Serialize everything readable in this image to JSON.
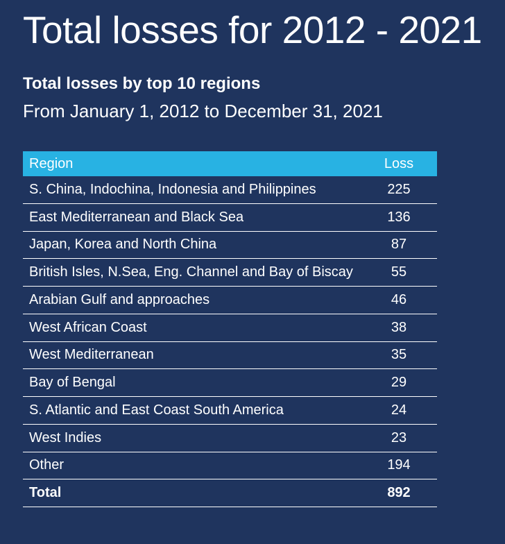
{
  "page": {
    "title": "Total losses for 2012 - 2021",
    "subtitle": "Total losses by top 10 regions",
    "date_range": "From January 1, 2012 to December 31, 2021"
  },
  "colors": {
    "background": "#1F345E",
    "table_header_background": "#28B2E3",
    "text": "#FFFFFF",
    "row_divider": "#FFFFFF"
  },
  "table": {
    "columns": {
      "region": "Region",
      "loss": "Loss"
    },
    "rows": [
      {
        "region": "S. China, Indochina, Indonesia and Philippines",
        "loss": "225"
      },
      {
        "region": "East Mediterranean and Black Sea",
        "loss": "136"
      },
      {
        "region": "Japan, Korea and North China",
        "loss": "87"
      },
      {
        "region": "British Isles, N.Sea, Eng. Channel and Bay of Biscay",
        "loss": "55"
      },
      {
        "region": "Arabian Gulf and approaches",
        "loss": "46"
      },
      {
        "region": "West African Coast",
        "loss": "38"
      },
      {
        "region": "West Mediterranean",
        "loss": "35"
      },
      {
        "region": "Bay of Bengal",
        "loss": "29"
      },
      {
        "region": "S. Atlantic and East Coast South America",
        "loss": "24"
      },
      {
        "region": "West Indies",
        "loss": "23"
      },
      {
        "region": "Other",
        "loss": "194"
      },
      {
        "region": "Total",
        "loss": "892"
      }
    ]
  },
  "chart_data": {
    "type": "table",
    "title": "Total losses for 2012 - 2021",
    "subtitle": "Total losses by top 10 regions",
    "period": "From January 1, 2012 to December 31, 2021",
    "columns": [
      "Region",
      "Loss"
    ],
    "categories": [
      "S. China, Indochina, Indonesia and Philippines",
      "East Mediterranean and Black Sea",
      "Japan, Korea and North China",
      "British Isles, N.Sea, Eng. Channel and Bay of Biscay",
      "Arabian Gulf and approaches",
      "West African Coast",
      "West Mediterranean",
      "Bay of Bengal",
      "S. Atlantic and East Coast South America",
      "West Indies",
      "Other",
      "Total"
    ],
    "values": [
      225,
      136,
      87,
      55,
      46,
      38,
      35,
      29,
      24,
      23,
      194,
      892
    ]
  }
}
